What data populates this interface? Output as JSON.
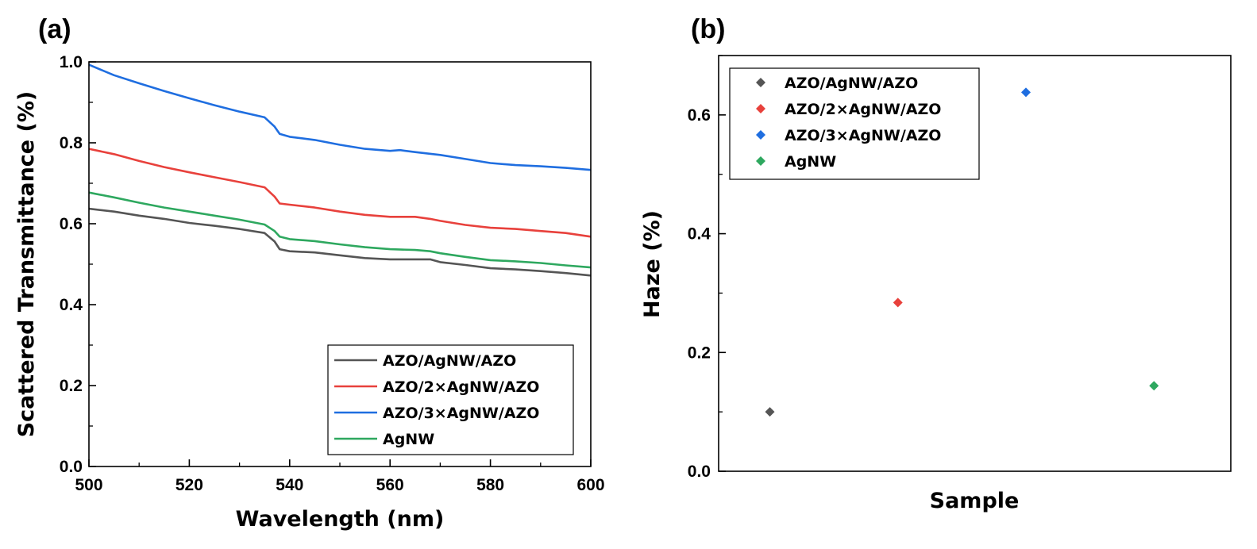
{
  "chart_data": [
    {
      "type": "line",
      "panel_label": "(a)",
      "xlabel": "Wavelength (nm)",
      "ylabel": "Scattered Transmittance (%)",
      "xlim": [
        500,
        600
      ],
      "ylim": [
        0.0,
        1.0
      ],
      "xticks": [
        "500",
        "520",
        "540",
        "560",
        "580",
        "600"
      ],
      "yticks": [
        "0.0",
        "0.2",
        "0.4",
        "0.6",
        "0.8",
        "1.0"
      ],
      "legend_position": "bottom-right",
      "series": [
        {
          "name": "AZO/AgNW/AZO",
          "color": "#555555",
          "x": [
            500,
            505,
            510,
            515,
            520,
            525,
            530,
            535,
            537,
            538,
            540,
            545,
            550,
            555,
            560,
            565,
            568,
            570,
            575,
            580,
            585,
            590,
            595,
            600
          ],
          "y": [
            0.637,
            0.63,
            0.62,
            0.612,
            0.602,
            0.595,
            0.587,
            0.577,
            0.556,
            0.537,
            0.532,
            0.529,
            0.522,
            0.515,
            0.512,
            0.512,
            0.512,
            0.505,
            0.498,
            0.49,
            0.487,
            0.483,
            0.478,
            0.472
          ]
        },
        {
          "name": "AZO/2×AgNW/AZO",
          "color": "#e8413c",
          "x": [
            500,
            505,
            510,
            515,
            520,
            525,
            530,
            535,
            537,
            538,
            540,
            545,
            550,
            555,
            560,
            565,
            568,
            570,
            575,
            580,
            585,
            590,
            595,
            600
          ],
          "y": [
            0.785,
            0.772,
            0.755,
            0.74,
            0.727,
            0.715,
            0.703,
            0.69,
            0.667,
            0.65,
            0.647,
            0.64,
            0.63,
            0.622,
            0.617,
            0.617,
            0.612,
            0.607,
            0.597,
            0.59,
            0.587,
            0.582,
            0.577,
            0.568
          ]
        },
        {
          "name": "AZO/3×AgNW/AZO",
          "color": "#1f6ee0",
          "x": [
            500,
            505,
            510,
            515,
            520,
            525,
            530,
            535,
            537,
            538,
            540,
            545,
            550,
            555,
            560,
            562,
            565,
            570,
            575,
            580,
            585,
            590,
            595,
            600
          ],
          "y": [
            0.993,
            0.967,
            0.947,
            0.928,
            0.91,
            0.893,
            0.877,
            0.863,
            0.84,
            0.822,
            0.815,
            0.807,
            0.795,
            0.785,
            0.78,
            0.782,
            0.777,
            0.77,
            0.76,
            0.75,
            0.745,
            0.742,
            0.738,
            0.733
          ]
        },
        {
          "name": "AgNW",
          "color": "#2ea85f",
          "x": [
            500,
            505,
            510,
            515,
            520,
            525,
            530,
            535,
            537,
            538,
            540,
            545,
            550,
            555,
            560,
            565,
            568,
            570,
            575,
            580,
            585,
            590,
            595,
            600
          ],
          "y": [
            0.677,
            0.665,
            0.652,
            0.64,
            0.63,
            0.62,
            0.61,
            0.598,
            0.582,
            0.568,
            0.562,
            0.557,
            0.549,
            0.542,
            0.537,
            0.535,
            0.532,
            0.527,
            0.518,
            0.51,
            0.507,
            0.503,
            0.497,
            0.492
          ]
        }
      ]
    },
    {
      "type": "scatter",
      "panel_label": "(b)",
      "xlabel": "Sample",
      "ylabel": "Haze (%)",
      "xlim": [
        0,
        1
      ],
      "ylim": [
        0.0,
        0.7
      ],
      "yticks": [
        "0.0",
        "0.2",
        "0.4",
        "0.6"
      ],
      "legend_position": "top-left",
      "series": [
        {
          "name": "AZO/AgNW/AZO",
          "color": "#555555",
          "x": 0.1,
          "y": 0.1
        },
        {
          "name": "AZO/2×AgNW/AZO",
          "color": "#e8413c",
          "x": 0.35,
          "y": 0.284
        },
        {
          "name": "AZO/3×AgNW/AZO",
          "color": "#1f6ee0",
          "x": 0.6,
          "y": 0.638
        },
        {
          "name": "AgNW",
          "color": "#2ea85f",
          "x": 0.85,
          "y": 0.144
        }
      ]
    }
  ]
}
